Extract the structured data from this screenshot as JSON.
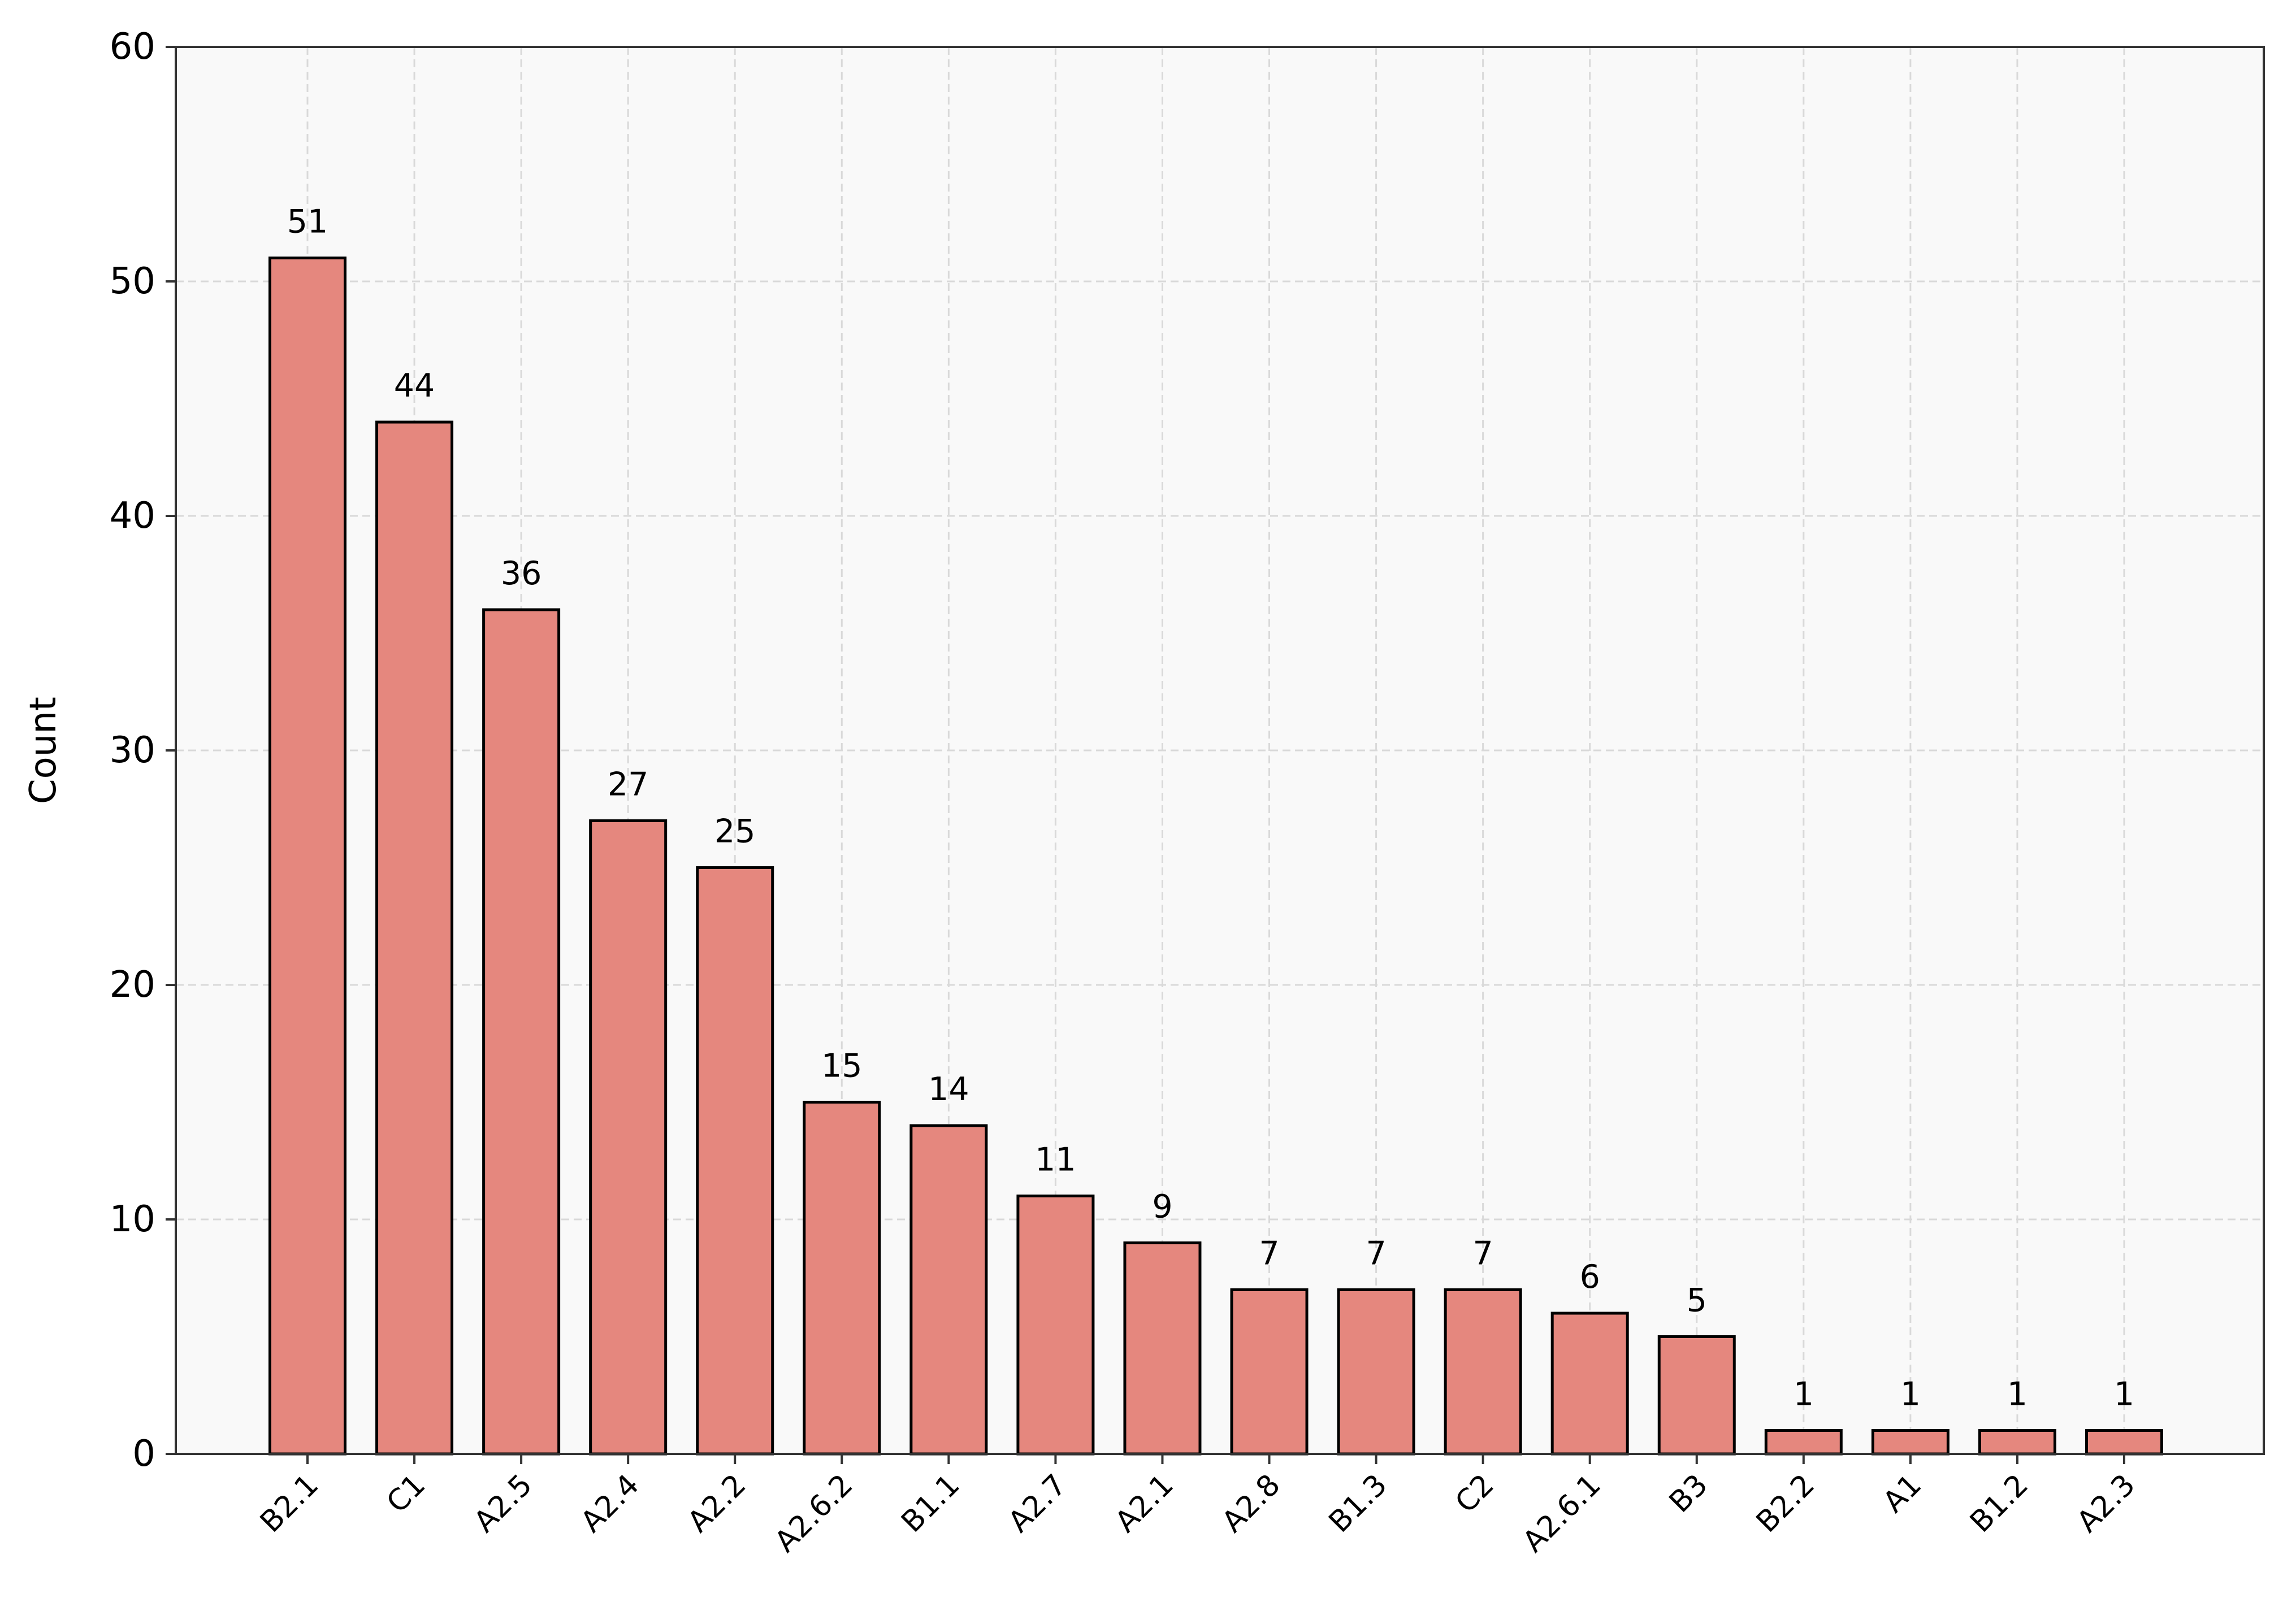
{
  "chart_data": {
    "type": "bar",
    "title": "",
    "xlabel": "",
    "ylabel": "Count",
    "ylim": [
      0,
      60
    ],
    "yticks": [
      0,
      10,
      20,
      30,
      40,
      50,
      60
    ],
    "grid": true,
    "categories": [
      "B2.1",
      "C1",
      "A2.5",
      "A2.4",
      "A2.2",
      "A2.6.2",
      "B1.1",
      "A2.7",
      "A2.1",
      "A2.8",
      "B1.3",
      "C2",
      "A2.6.1",
      "B3",
      "B2.2",
      "A1",
      "B1.2",
      "A2.3"
    ],
    "values": [
      51,
      44,
      36,
      27,
      25,
      15,
      14,
      11,
      9,
      7,
      7,
      7,
      6,
      5,
      1,
      1,
      1,
      1
    ],
    "colors": {
      "bar_fill": "#e5877e",
      "bar_edge": "#000000",
      "plot_background": "#f9f9f9",
      "grid": "#d9d9d9",
      "axes": "#333333"
    }
  }
}
